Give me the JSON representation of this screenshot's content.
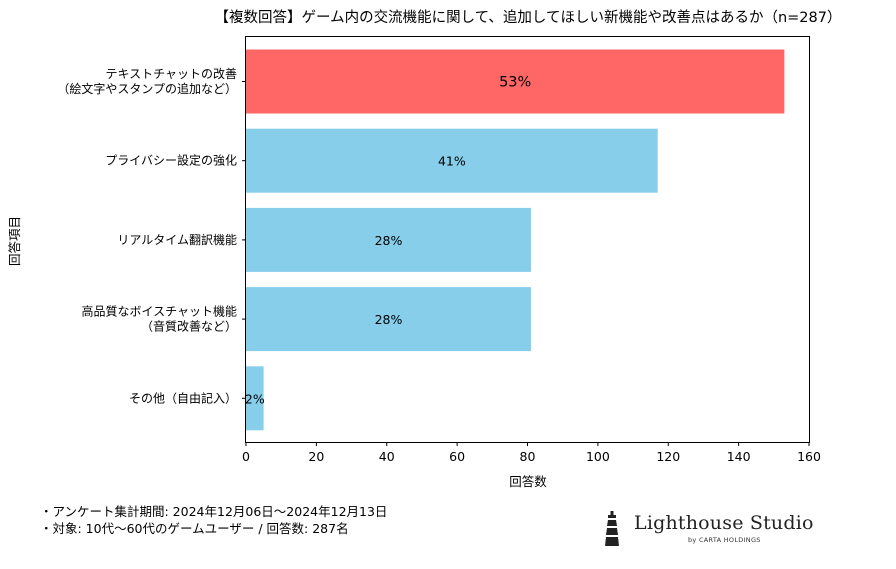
{
  "chart_data": {
    "type": "bar",
    "orientation": "horizontal",
    "title": "【複数回答】ゲーム内の交流機能に関して、追加してほしい新機能や改善点はあるか（n=287）",
    "xlabel": "回答数",
    "ylabel": "回答項目",
    "xlim": [
      0,
      160
    ],
    "xticks": [
      "0",
      "20",
      "40",
      "60",
      "80",
      "100",
      "120",
      "140",
      "160"
    ],
    "categories": [
      [
        "テキストチャットの改善",
        "（絵文字やスタンプの追加など）"
      ],
      [
        "プライバシー設定の強化"
      ],
      [
        "リアルタイム翻訳機能"
      ],
      [
        "高品質なボイスチャット機能",
        "（音質改善など）"
      ],
      [
        "その他（自由記入）"
      ]
    ],
    "values": [
      153,
      117,
      81,
      81,
      5
    ],
    "labels": [
      "53%",
      "41%",
      "28%",
      "28%",
      "2%"
    ],
    "highlight_index": 0,
    "colors": {
      "highlight": "#ff6666",
      "default": "#87ceeb"
    },
    "grid": false,
    "legend": "none"
  },
  "notes": {
    "line1": "・アンケート集計期間: 2024年12月06日～2024年12月13日",
    "line2": "・対象: 10代～60代のゲームユーザー / 回答数: 287名"
  },
  "logo": {
    "name": "Lighthouse Studio",
    "sub": "by CARTA HOLDINGS",
    "icon": "lighthouse-icon"
  }
}
